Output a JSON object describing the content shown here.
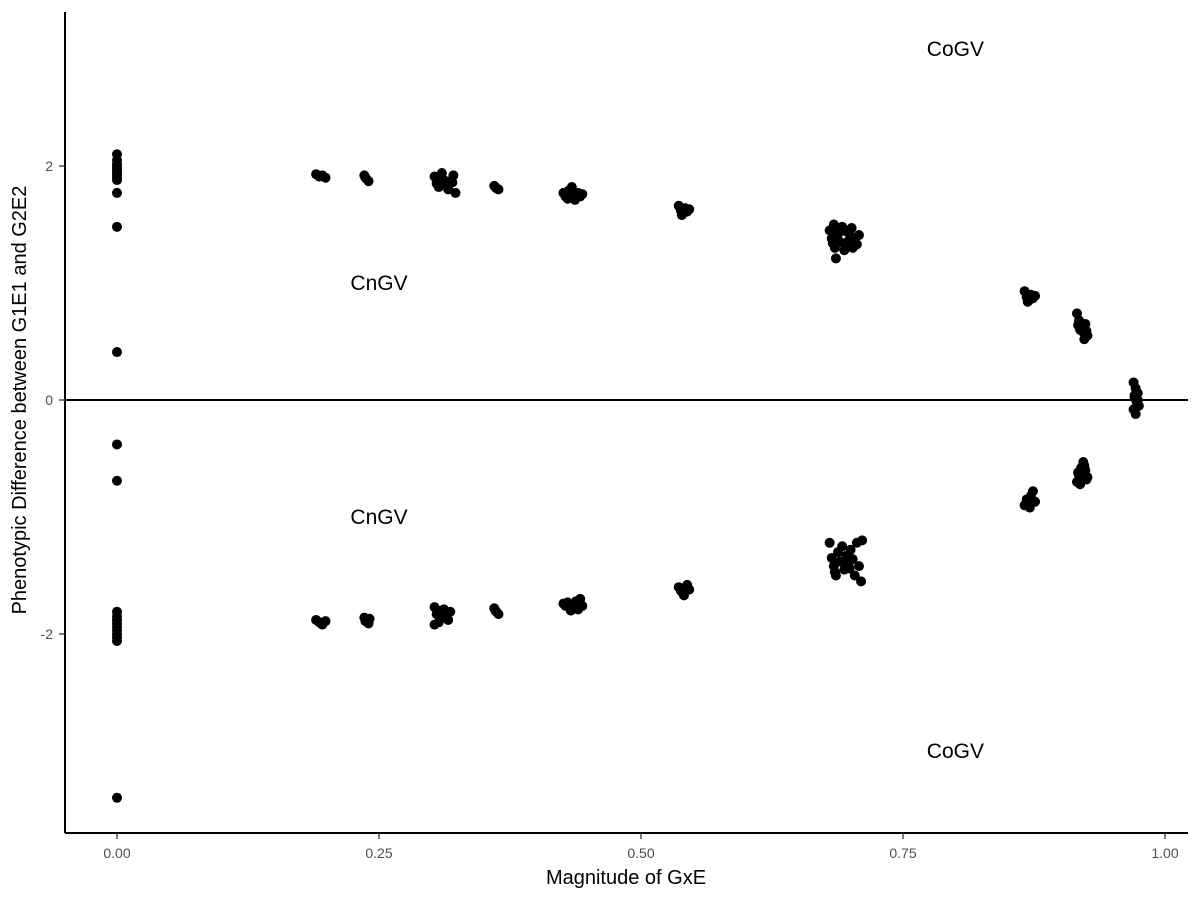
{
  "chart_data": {
    "type": "scatter",
    "title": "",
    "xlabel": "Magnitude of GxE",
    "ylabel": "Phenotypic Difference between G1E1 and G2E2",
    "xlim": [
      -0.05,
      1.02
    ],
    "ylim": [
      -3.7,
      3.3
    ],
    "x_ticks": [
      0.0,
      0.25,
      0.5,
      0.75,
      1.0
    ],
    "x_tick_labels": [
      "0.00",
      "0.25",
      "0.50",
      "0.75",
      "1.00"
    ],
    "y_ticks": [
      -2,
      0,
      2
    ],
    "y_tick_labels": [
      "-2",
      "0",
      "2"
    ],
    "reference_line_y": 0,
    "grid": false,
    "point_color": "#000000",
    "annotations": [
      {
        "text": "CoGV",
        "x": 0.8,
        "y": 3.0
      },
      {
        "text": "CnGV",
        "x": 0.25,
        "y": 1.0
      },
      {
        "text": "CnGV",
        "x": 0.25,
        "y": -1.0
      },
      {
        "text": "CoGV",
        "x": 0.8,
        "y": -3.0
      }
    ],
    "points": [
      {
        "x": 0.0,
        "y": 2.1
      },
      {
        "x": 0.0,
        "y": 2.05
      },
      {
        "x": 0.0,
        "y": 2.02
      },
      {
        "x": 0.0,
        "y": 2.0
      },
      {
        "x": 0.0,
        "y": 1.98
      },
      {
        "x": 0.0,
        "y": 1.96
      },
      {
        "x": 0.0,
        "y": 1.94
      },
      {
        "x": 0.0,
        "y": 1.92
      },
      {
        "x": 0.0,
        "y": 1.9
      },
      {
        "x": 0.0,
        "y": 1.88
      },
      {
        "x": 0.0,
        "y": 1.77
      },
      {
        "x": 0.0,
        "y": 1.48
      },
      {
        "x": 0.0,
        "y": 0.41
      },
      {
        "x": 0.0,
        "y": -0.38
      },
      {
        "x": 0.0,
        "y": -0.69
      },
      {
        "x": 0.0,
        "y": -1.81
      },
      {
        "x": 0.0,
        "y": -1.85
      },
      {
        "x": 0.0,
        "y": -1.88
      },
      {
        "x": 0.0,
        "y": -1.91
      },
      {
        "x": 0.0,
        "y": -1.94
      },
      {
        "x": 0.0,
        "y": -1.97
      },
      {
        "x": 0.0,
        "y": -2.0
      },
      {
        "x": 0.0,
        "y": -2.03
      },
      {
        "x": 0.0,
        "y": -2.06
      },
      {
        "x": 0.0,
        "y": -3.4
      },
      {
        "x": 0.19,
        "y": 1.93
      },
      {
        "x": 0.193,
        "y": 1.91
      },
      {
        "x": 0.196,
        "y": 1.92
      },
      {
        "x": 0.199,
        "y": 1.9
      },
      {
        "x": 0.19,
        "y": -1.88
      },
      {
        "x": 0.193,
        "y": -1.9
      },
      {
        "x": 0.196,
        "y": -1.92
      },
      {
        "x": 0.199,
        "y": -1.89
      },
      {
        "x": 0.236,
        "y": 1.92
      },
      {
        "x": 0.238,
        "y": 1.89
      },
      {
        "x": 0.24,
        "y": 1.87
      },
      {
        "x": 0.237,
        "y": 1.9
      },
      {
        "x": 0.236,
        "y": -1.86
      },
      {
        "x": 0.238,
        "y": -1.88
      },
      {
        "x": 0.24,
        "y": -1.91
      },
      {
        "x": 0.237,
        "y": -1.89
      },
      {
        "x": 0.241,
        "y": -1.87
      },
      {
        "x": 0.303,
        "y": 1.91
      },
      {
        "x": 0.305,
        "y": 1.85
      },
      {
        "x": 0.307,
        "y": 1.82
      },
      {
        "x": 0.31,
        "y": 1.94
      },
      {
        "x": 0.312,
        "y": 1.88
      },
      {
        "x": 0.314,
        "y": 1.84
      },
      {
        "x": 0.316,
        "y": 1.8
      },
      {
        "x": 0.318,
        "y": 1.87
      },
      {
        "x": 0.321,
        "y": 1.92
      },
      {
        "x": 0.323,
        "y": 1.77
      },
      {
        "x": 0.32,
        "y": 1.86
      },
      {
        "x": 0.308,
        "y": 1.89
      },
      {
        "x": 0.303,
        "y": -1.77
      },
      {
        "x": 0.305,
        "y": -1.83
      },
      {
        "x": 0.307,
        "y": -1.9
      },
      {
        "x": 0.31,
        "y": -1.86
      },
      {
        "x": 0.312,
        "y": -1.79
      },
      {
        "x": 0.314,
        "y": -1.85
      },
      {
        "x": 0.316,
        "y": -1.88
      },
      {
        "x": 0.318,
        "y": -1.81
      },
      {
        "x": 0.303,
        "y": -1.92
      },
      {
        "x": 0.309,
        "y": -1.8
      },
      {
        "x": 0.36,
        "y": 1.83
      },
      {
        "x": 0.362,
        "y": 1.81
      },
      {
        "x": 0.364,
        "y": 1.8
      },
      {
        "x": 0.361,
        "y": 1.82
      },
      {
        "x": 0.36,
        "y": -1.78
      },
      {
        "x": 0.362,
        "y": -1.81
      },
      {
        "x": 0.364,
        "y": -1.83
      },
      {
        "x": 0.361,
        "y": -1.8
      },
      {
        "x": 0.426,
        "y": 1.77
      },
      {
        "x": 0.428,
        "y": 1.74
      },
      {
        "x": 0.43,
        "y": 1.72
      },
      {
        "x": 0.432,
        "y": 1.78
      },
      {
        "x": 0.434,
        "y": 1.82
      },
      {
        "x": 0.436,
        "y": 1.75
      },
      {
        "x": 0.438,
        "y": 1.73
      },
      {
        "x": 0.44,
        "y": 1.77
      },
      {
        "x": 0.442,
        "y": 1.74
      },
      {
        "x": 0.444,
        "y": 1.76
      },
      {
        "x": 0.431,
        "y": 1.79
      },
      {
        "x": 0.437,
        "y": 1.71
      },
      {
        "x": 0.426,
        "y": -1.74
      },
      {
        "x": 0.428,
        "y": -1.76
      },
      {
        "x": 0.43,
        "y": -1.73
      },
      {
        "x": 0.432,
        "y": -1.78
      },
      {
        "x": 0.434,
        "y": -1.75
      },
      {
        "x": 0.436,
        "y": -1.77
      },
      {
        "x": 0.438,
        "y": -1.72
      },
      {
        "x": 0.44,
        "y": -1.79
      },
      {
        "x": 0.442,
        "y": -1.7
      },
      {
        "x": 0.444,
        "y": -1.76
      },
      {
        "x": 0.433,
        "y": -1.8
      },
      {
        "x": 0.536,
        "y": 1.66
      },
      {
        "x": 0.538,
        "y": 1.62
      },
      {
        "x": 0.54,
        "y": 1.6
      },
      {
        "x": 0.542,
        "y": 1.64
      },
      {
        "x": 0.544,
        "y": 1.61
      },
      {
        "x": 0.546,
        "y": 1.63
      },
      {
        "x": 0.539,
        "y": 1.58
      },
      {
        "x": 0.536,
        "y": -1.6
      },
      {
        "x": 0.538,
        "y": -1.63
      },
      {
        "x": 0.54,
        "y": -1.65
      },
      {
        "x": 0.542,
        "y": -1.61
      },
      {
        "x": 0.544,
        "y": -1.58
      },
      {
        "x": 0.546,
        "y": -1.62
      },
      {
        "x": 0.541,
        "y": -1.67
      },
      {
        "x": 0.68,
        "y": 1.45
      },
      {
        "x": 0.682,
        "y": 1.38
      },
      {
        "x": 0.684,
        "y": 1.5
      },
      {
        "x": 0.685,
        "y": 1.3
      },
      {
        "x": 0.686,
        "y": 1.21
      },
      {
        "x": 0.688,
        "y": 1.42
      },
      {
        "x": 0.69,
        "y": 1.35
      },
      {
        "x": 0.692,
        "y": 1.48
      },
      {
        "x": 0.694,
        "y": 1.28
      },
      {
        "x": 0.696,
        "y": 1.44
      },
      {
        "x": 0.698,
        "y": 1.36
      },
      {
        "x": 0.7,
        "y": 1.4
      },
      {
        "x": 0.702,
        "y": 1.3
      },
      {
        "x": 0.704,
        "y": 1.38
      },
      {
        "x": 0.706,
        "y": 1.33
      },
      {
        "x": 0.708,
        "y": 1.41
      },
      {
        "x": 0.683,
        "y": 1.34
      },
      {
        "x": 0.689,
        "y": 1.46
      },
      {
        "x": 0.695,
        "y": 1.32
      },
      {
        "x": 0.701,
        "y": 1.47
      },
      {
        "x": 0.68,
        "y": -1.22
      },
      {
        "x": 0.682,
        "y": -1.35
      },
      {
        "x": 0.684,
        "y": -1.42
      },
      {
        "x": 0.686,
        "y": -1.5
      },
      {
        "x": 0.688,
        "y": -1.3
      },
      {
        "x": 0.69,
        "y": -1.38
      },
      {
        "x": 0.692,
        "y": -1.25
      },
      {
        "x": 0.694,
        "y": -1.45
      },
      {
        "x": 0.696,
        "y": -1.33
      },
      {
        "x": 0.698,
        "y": -1.4
      },
      {
        "x": 0.7,
        "y": -1.28
      },
      {
        "x": 0.702,
        "y": -1.36
      },
      {
        "x": 0.704,
        "y": -1.5
      },
      {
        "x": 0.706,
        "y": -1.22
      },
      {
        "x": 0.708,
        "y": -1.42
      },
      {
        "x": 0.71,
        "y": -1.55
      },
      {
        "x": 0.711,
        "y": -1.2
      },
      {
        "x": 0.685,
        "y": -1.47
      },
      {
        "x": 0.699,
        "y": -1.44
      },
      {
        "x": 0.866,
        "y": 0.93
      },
      {
        "x": 0.868,
        "y": 0.88
      },
      {
        "x": 0.87,
        "y": 0.85
      },
      {
        "x": 0.872,
        "y": 0.9
      },
      {
        "x": 0.874,
        "y": 0.87
      },
      {
        "x": 0.876,
        "y": 0.89
      },
      {
        "x": 0.869,
        "y": 0.84
      },
      {
        "x": 0.866,
        "y": -0.9
      },
      {
        "x": 0.868,
        "y": -0.85
      },
      {
        "x": 0.87,
        "y": -0.88
      },
      {
        "x": 0.872,
        "y": -0.82
      },
      {
        "x": 0.874,
        "y": -0.78
      },
      {
        "x": 0.876,
        "y": -0.87
      },
      {
        "x": 0.871,
        "y": -0.92
      },
      {
        "x": 0.916,
        "y": 0.74
      },
      {
        "x": 0.918,
        "y": 0.68
      },
      {
        "x": 0.92,
        "y": 0.62
      },
      {
        "x": 0.922,
        "y": 0.58
      },
      {
        "x": 0.924,
        "y": 0.65
      },
      {
        "x": 0.926,
        "y": 0.55
      },
      {
        "x": 0.919,
        "y": 0.6
      },
      {
        "x": 0.923,
        "y": 0.52
      },
      {
        "x": 0.917,
        "y": 0.64
      },
      {
        "x": 0.925,
        "y": 0.59
      },
      {
        "x": 0.916,
        "y": -0.7
      },
      {
        "x": 0.918,
        "y": -0.64
      },
      {
        "x": 0.92,
        "y": -0.58
      },
      {
        "x": 0.922,
        "y": -0.53
      },
      {
        "x": 0.924,
        "y": -0.6
      },
      {
        "x": 0.926,
        "y": -0.66
      },
      {
        "x": 0.919,
        "y": -0.72
      },
      {
        "x": 0.923,
        "y": -0.56
      },
      {
        "x": 0.917,
        "y": -0.62
      },
      {
        "x": 0.925,
        "y": -0.68
      },
      {
        "x": 0.97,
        "y": 0.15
      },
      {
        "x": 0.972,
        "y": 0.1
      },
      {
        "x": 0.974,
        "y": 0.06
      },
      {
        "x": 0.971,
        "y": 0.02
      },
      {
        "x": 0.973,
        "y": -0.02
      },
      {
        "x": 0.975,
        "y": -0.05
      },
      {
        "x": 0.97,
        "y": -0.08
      },
      {
        "x": 0.972,
        "y": -0.12
      },
      {
        "x": 0.974,
        "y": 0.0
      },
      {
        "x": 0.971,
        "y": 0.04
      }
    ]
  }
}
